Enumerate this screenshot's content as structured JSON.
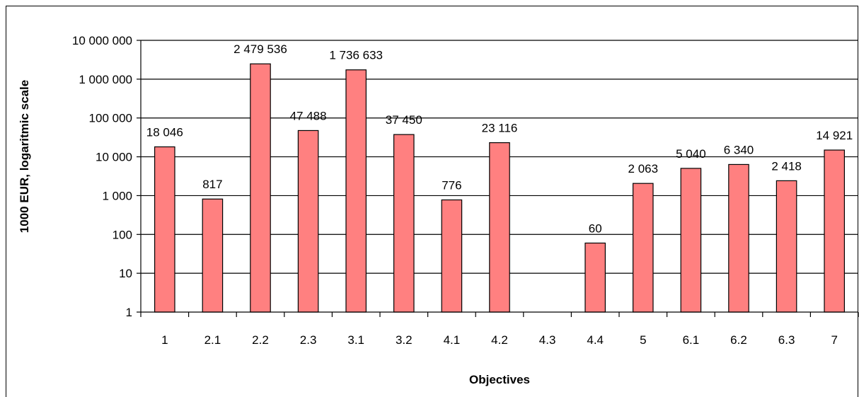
{
  "chart_data": {
    "type": "bar",
    "title": "",
    "xlabel": "Objectives",
    "ylabel": "1000 EUR, logaritmic scale",
    "y_scale": "log",
    "ylim": [
      1,
      10000000
    ],
    "y_ticks": [
      {
        "value": 1,
        "label": "1"
      },
      {
        "value": 10,
        "label": "10"
      },
      {
        "value": 100,
        "label": "100"
      },
      {
        "value": 1000,
        "label": "1 000"
      },
      {
        "value": 10000,
        "label": "10 000"
      },
      {
        "value": 100000,
        "label": "100 000"
      },
      {
        "value": 1000000,
        "label": "1 000 000"
      },
      {
        "value": 10000000,
        "label": "10 000 000"
      }
    ],
    "grid": true,
    "legend": "none",
    "categories": [
      "1",
      "2.1",
      "2.2",
      "2.3",
      "3.1",
      "3.2",
      "4.1",
      "4.2",
      "4.3",
      "4.4",
      "5",
      "6.1",
      "6.2",
      "6.3",
      "7"
    ],
    "values": [
      18046,
      817,
      2479536,
      47488,
      1736633,
      37450,
      776,
      23116,
      null,
      60,
      2063,
      5040,
      6340,
      2418,
      14921
    ],
    "data_labels": [
      "18 046",
      "817",
      "2 479 536",
      "47 488",
      "1 736 633",
      "37 450",
      "776",
      "23 116",
      "",
      "60",
      "2 063",
      "5 040",
      "6 340",
      "2 418",
      "14 921"
    ],
    "colors": {
      "bar_fill": "#ff8080",
      "bar_stroke": "#000000",
      "grid": "#000000"
    }
  }
}
